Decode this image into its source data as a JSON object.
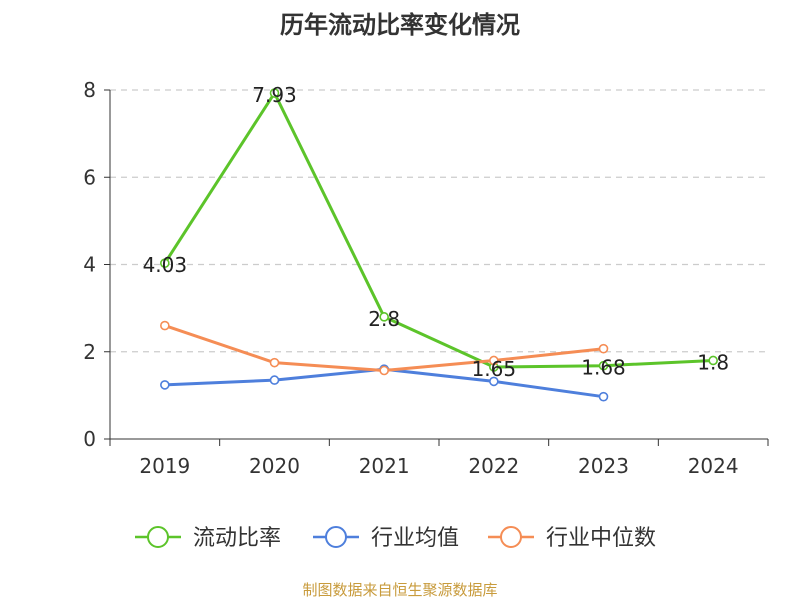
{
  "chart_data": {
    "type": "line",
    "title": "历年流动比率变化情况",
    "categories": [
      "2019",
      "2020",
      "2021",
      "2022",
      "2023",
      "2024"
    ],
    "ylim": [
      0,
      8
    ],
    "yticks": [
      0,
      2,
      4,
      6,
      8
    ],
    "grid": true,
    "legend_position": "bottom",
    "series": [
      {
        "name": "流动比率",
        "color": "#5cc42a",
        "values": [
          4.03,
          7.93,
          2.8,
          1.65,
          1.68,
          1.8
        ],
        "labels": [
          "4.03",
          "7.93",
          "2.8",
          "1.65",
          "1.68",
          "1.8"
        ],
        "show_labels": true
      },
      {
        "name": "行业均值",
        "color": "#4e7fdc",
        "values": [
          1.24,
          1.35,
          1.6,
          1.32,
          0.97,
          null
        ],
        "show_labels": false
      },
      {
        "name": "行业中位数",
        "color": "#f58d55",
        "values": [
          2.6,
          1.75,
          1.57,
          1.8,
          2.07,
          null
        ],
        "show_labels": false
      }
    ]
  },
  "source": "制图数据来自恒生聚源数据库"
}
